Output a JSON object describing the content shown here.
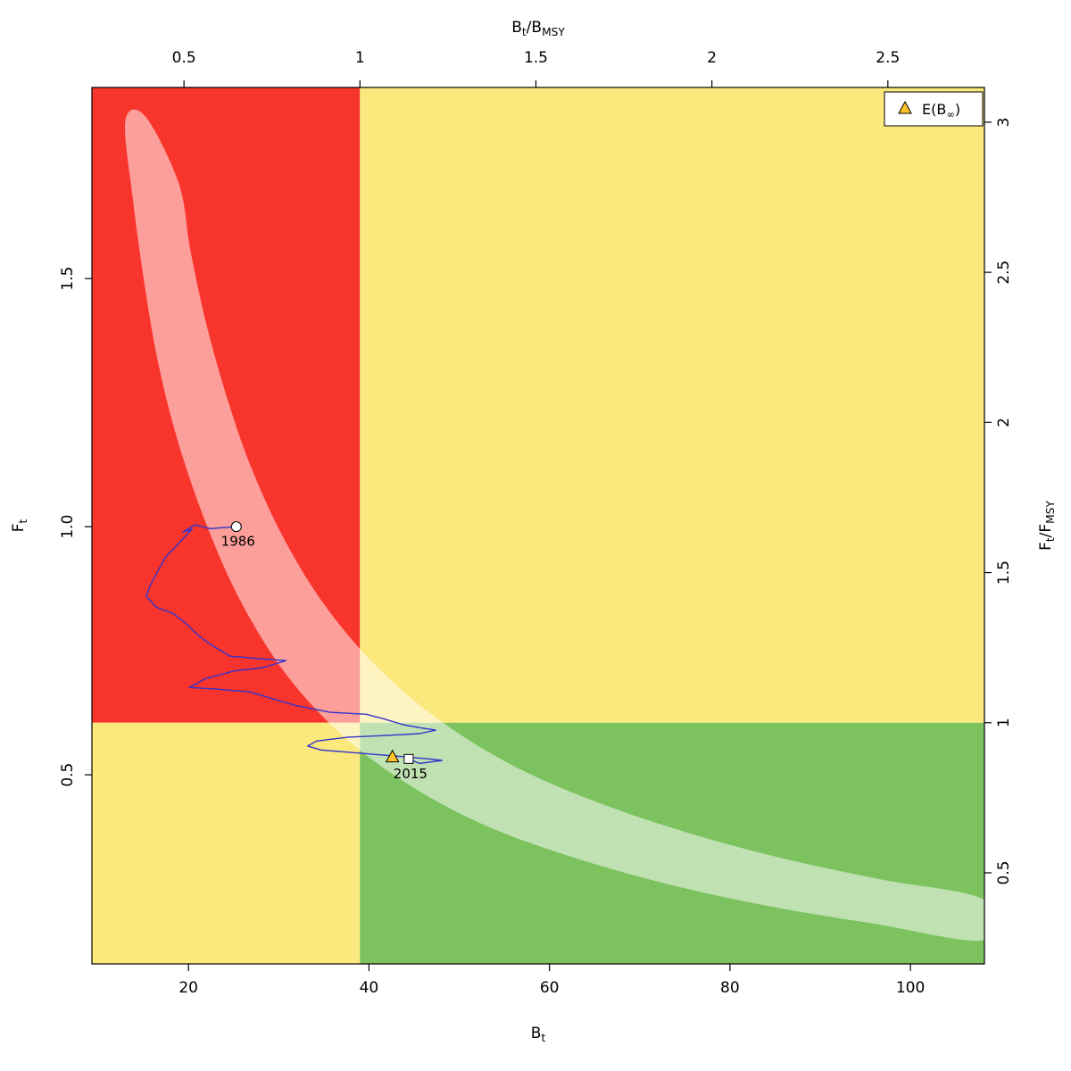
{
  "figure": {
    "background": "#ffffff"
  },
  "chart_data": {
    "type": "scatter",
    "description": "Kobe phase plot: fishing mortality (Ft) versus biomass (Bt) with MSY reference quadrants, stock trajectory 1986-2015, and 95% confidence band",
    "plot": {
      "quadrant_colors": {
        "top_left": "#f8352c",
        "top_right": "#fce97d",
        "bottom_left": "#fce97d",
        "bottom_right": "#7cc25f"
      },
      "band_fill": "rgba(255,255,255,0.52)",
      "trajectory_color": "#3333cc",
      "marker_gold": "#ffc425",
      "border_color": "#000000"
    },
    "reference": {
      "b_msy": 39.0,
      "f_msy": 0.605
    },
    "axes": {
      "bottom": {
        "label_text": "Bt",
        "label_parts": [
          {
            "t": "B"
          },
          {
            "s": "t"
          }
        ],
        "range": [
          9.3,
          108.2
        ],
        "ticks": [
          20,
          40,
          60,
          80,
          100
        ],
        "tick_labels": [
          "20",
          "40",
          "60",
          "80",
          "100"
        ]
      },
      "top": {
        "label_text": "Bt/BMSY",
        "label_parts": [
          {
            "t": "B"
          },
          {
            "s": "t"
          },
          {
            "t": "/"
          },
          {
            "t": "B"
          },
          {
            "s": "MSY"
          }
        ],
        "ticks": [
          0.5,
          1,
          1.5,
          2,
          2.5
        ],
        "tick_labels": [
          "0.5",
          "1",
          "1.5",
          "2",
          "2.5"
        ]
      },
      "left": {
        "label_text": "Ft",
        "label_parts": [
          {
            "t": "F"
          },
          {
            "s": "t"
          }
        ],
        "range": [
          0.119,
          1.885
        ],
        "ticks": [
          0.5,
          1.0,
          1.5
        ],
        "tick_labels": [
          "0.5",
          "1.0",
          "1.5"
        ]
      },
      "right": {
        "label_text": "Ft/FMSY",
        "label_parts": [
          {
            "t": "F"
          },
          {
            "s": "t"
          },
          {
            "t": "/"
          },
          {
            "t": "F"
          },
          {
            "s": "MSY"
          }
        ],
        "ticks": [
          0.5,
          1,
          1.5,
          2,
          2.5,
          3
        ],
        "tick_labels": [
          "0.5",
          "1",
          "1.5",
          "2",
          "2.5",
          "3"
        ]
      }
    },
    "trajectory": [
      [
        25.3,
        1.0
      ],
      [
        22.4,
        0.996
      ],
      [
        20.7,
        1.004
      ],
      [
        19.4,
        0.989
      ],
      [
        20.4,
        0.995
      ],
      [
        19.7,
        0.982
      ],
      [
        17.4,
        0.937
      ],
      [
        15.8,
        0.883
      ],
      [
        15.3,
        0.86
      ],
      [
        16.4,
        0.838
      ],
      [
        18.4,
        0.824
      ],
      [
        19.9,
        0.802
      ],
      [
        21.1,
        0.781
      ],
      [
        22.4,
        0.763
      ],
      [
        24.6,
        0.739
      ],
      [
        27.8,
        0.734
      ],
      [
        30.8,
        0.73
      ],
      [
        28.3,
        0.716
      ],
      [
        25.0,
        0.709
      ],
      [
        21.9,
        0.694
      ],
      [
        20.1,
        0.676
      ],
      [
        22.9,
        0.673
      ],
      [
        26.8,
        0.667
      ],
      [
        31.8,
        0.64
      ],
      [
        35.7,
        0.626
      ],
      [
        39.7,
        0.622
      ],
      [
        41.6,
        0.613
      ],
      [
        43.8,
        0.601
      ],
      [
        45.6,
        0.595
      ],
      [
        47.4,
        0.59
      ],
      [
        45.6,
        0.583
      ],
      [
        41.6,
        0.579
      ],
      [
        37.7,
        0.576
      ],
      [
        34.2,
        0.568
      ],
      [
        33.2,
        0.558
      ],
      [
        34.7,
        0.55
      ],
      [
        36.7,
        0.547
      ],
      [
        40.7,
        0.541
      ],
      [
        44.1,
        0.536
      ],
      [
        46.6,
        0.532
      ],
      [
        48.1,
        0.529
      ],
      [
        45.6,
        0.523
      ],
      [
        44.4,
        0.532
      ]
    ],
    "band": {
      "outer_edge": [
        [
          13.0,
          1.818
        ],
        [
          13.8,
          1.665
        ],
        [
          15.0,
          1.504
        ],
        [
          16.5,
          1.342
        ],
        [
          18.7,
          1.18
        ],
        [
          21.7,
          1.018
        ],
        [
          25.6,
          0.856
        ],
        [
          30.8,
          0.703
        ],
        [
          37.2,
          0.577
        ],
        [
          44.6,
          0.478
        ],
        [
          53.0,
          0.397
        ],
        [
          62.4,
          0.335
        ],
        [
          72.8,
          0.281
        ],
        [
          84.1,
          0.236
        ],
        [
          96.0,
          0.2
        ],
        [
          108.2,
          0.167
        ]
      ],
      "inner_edge": [
        [
          108.2,
          0.248
        ],
        [
          96.5,
          0.29
        ],
        [
          85.1,
          0.335
        ],
        [
          74.3,
          0.389
        ],
        [
          64.4,
          0.451
        ],
        [
          55.5,
          0.523
        ],
        [
          47.6,
          0.613
        ],
        [
          40.7,
          0.721
        ],
        [
          34.9,
          0.847
        ],
        [
          30.4,
          0.982
        ],
        [
          26.8,
          1.126
        ],
        [
          24.1,
          1.27
        ],
        [
          21.9,
          1.414
        ],
        [
          20.2,
          1.558
        ],
        [
          18.9,
          1.693
        ],
        [
          15.2,
          1.827
        ]
      ]
    },
    "points": [
      {
        "id": "start",
        "label": "1986",
        "marker": "circle",
        "b": 25.3,
        "f": 1.0
      },
      {
        "id": "end",
        "label": "2015",
        "marker": "square",
        "b": 44.4,
        "f": 0.532
      },
      {
        "id": "expected",
        "label": "",
        "marker": "triangle",
        "b": 42.6,
        "f": 0.536
      }
    ],
    "legend": {
      "marker": "triangle",
      "label_text": "E(B∞)",
      "label_parts": [
        {
          "t": "E(B"
        },
        {
          "s": "∞"
        },
        {
          "t": ")"
        }
      ]
    }
  }
}
